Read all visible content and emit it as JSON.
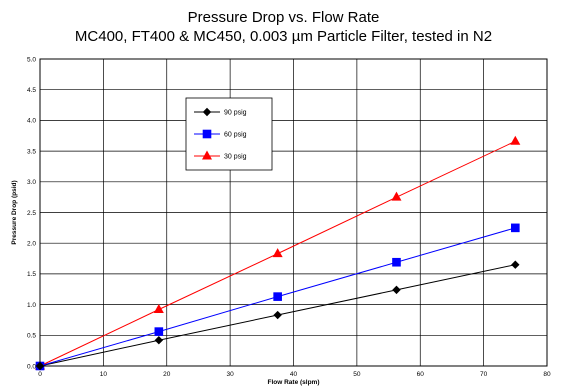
{
  "chart_data": {
    "type": "line",
    "title": "Pressure Drop vs. Flow Rate",
    "subtitle": "MC400, FT400 & MC450, 0.003 µm Particle Filter, tested in N2",
    "xlabel": "Flow Rate (slpm)",
    "ylabel": "Pressure Drop (psid)",
    "xlim": [
      0,
      80
    ],
    "ylim": [
      0,
      5.0
    ],
    "xticks": [
      "0",
      "10",
      "20",
      "30",
      "40",
      "50",
      "60",
      "70",
      "80"
    ],
    "yticks": [
      "0.0",
      "0.5",
      "1.0",
      "1.5",
      "2.0",
      "2.5",
      "3.0",
      "3.5",
      "4.0",
      "4.5",
      "5.0"
    ],
    "grid": true,
    "legend_position": "top-left",
    "series": [
      {
        "name": "90 psig",
        "color": "#000000",
        "marker": "diamond",
        "x": [
          0,
          18.75,
          37.5,
          56.25,
          75
        ],
        "y": [
          0,
          0.42,
          0.83,
          1.24,
          1.65
        ]
      },
      {
        "name": "60 psig",
        "color": "#0000ff",
        "marker": "square",
        "x": [
          0,
          18.75,
          37.5,
          56.25,
          75
        ],
        "y": [
          0,
          0.56,
          1.13,
          1.69,
          2.25
        ]
      },
      {
        "name": "30 psig",
        "color": "#ff0000",
        "marker": "triangle",
        "x": [
          0,
          18.75,
          37.5,
          56.25,
          75
        ],
        "y": [
          0,
          0.92,
          1.83,
          2.75,
          3.66
        ]
      }
    ]
  }
}
